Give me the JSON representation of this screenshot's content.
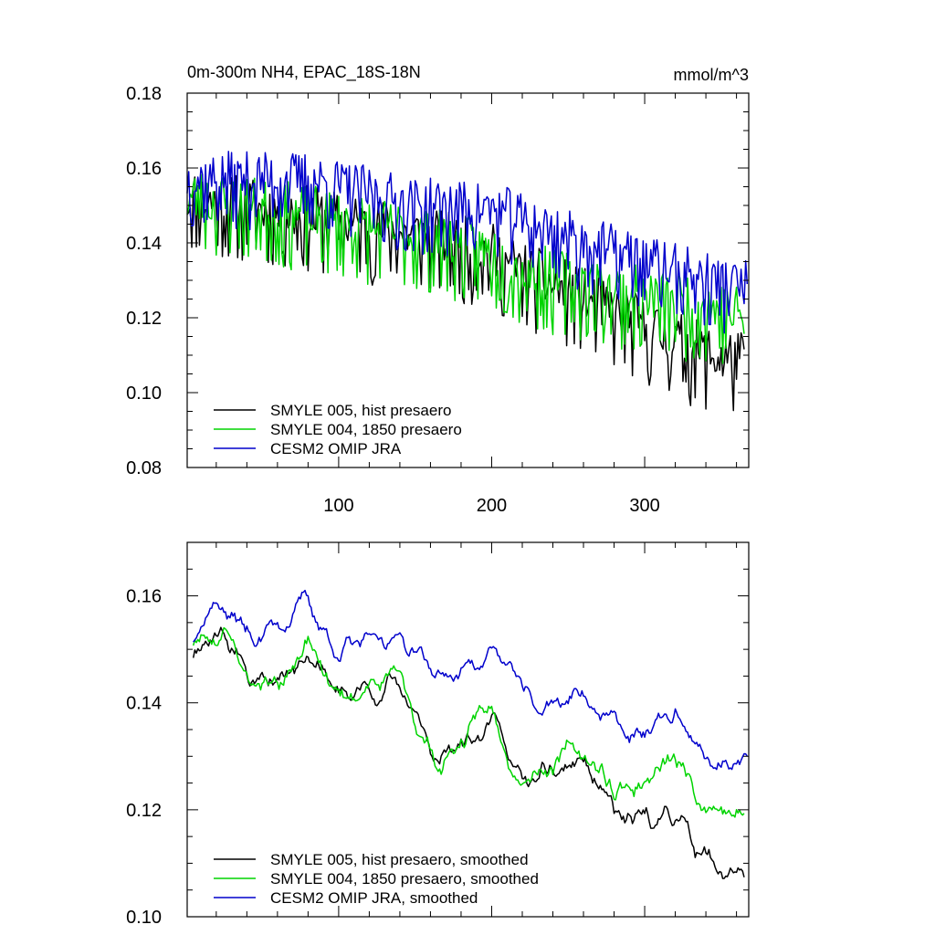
{
  "chart_data": [
    {
      "type": "line",
      "title_left": "0m-300m NH4, EPAC_18S-18N",
      "title_right": "mmol/m^3",
      "xlim": [
        1,
        368
      ],
      "ylim": [
        0.08,
        0.18
      ],
      "xticks": [
        100,
        200,
        300
      ],
      "xtick_labels": [
        "100",
        "200",
        "300"
      ],
      "yticks": [
        0.08,
        0.1,
        0.12,
        0.14,
        0.16,
        0.18
      ],
      "ytick_labels": [
        "0.08",
        "0.10",
        "0.12",
        "0.14",
        "0.16",
        "0.18"
      ],
      "series": [
        {
          "name": "SMYLE 005, hist presaero",
          "color": "#000000",
          "start": 1,
          "end": 365,
          "seed": 11,
          "noise": 0.0085,
          "trend": [
            [
              1,
              0.152
            ],
            [
              80,
              0.147
            ],
            [
              150,
              0.142
            ],
            [
              200,
              0.137
            ],
            [
              220,
              0.132
            ],
            [
              260,
              0.125
            ],
            [
              300,
              0.117
            ],
            [
              340,
              0.11
            ],
            [
              365,
              0.108
            ]
          ]
        },
        {
          "name": "SMYLE 004, 1850 presaero",
          "color": "#00d400",
          "start": 1,
          "end": 365,
          "seed": 23,
          "noise": 0.0085,
          "trend": [
            [
              1,
              0.152
            ],
            [
              80,
              0.147
            ],
            [
              150,
              0.142
            ],
            [
              200,
              0.137
            ],
            [
              220,
              0.132
            ],
            [
              260,
              0.129
            ],
            [
              300,
              0.125
            ],
            [
              340,
              0.123
            ],
            [
              365,
              0.12
            ]
          ]
        },
        {
          "name": "CESM2 OMIP JRA",
          "color": "#0000cc",
          "start": 1,
          "end": 367,
          "seed": 37,
          "noise": 0.0075,
          "trend": [
            [
              1,
              0.157
            ],
            [
              80,
              0.157
            ],
            [
              150,
              0.15
            ],
            [
              200,
              0.149
            ],
            [
              260,
              0.14
            ],
            [
              300,
              0.135
            ],
            [
              340,
              0.13
            ],
            [
              367,
              0.128
            ]
          ]
        }
      ]
    },
    {
      "type": "line",
      "xlim": [
        1,
        368
      ],
      "ylim": [
        0.1,
        0.17
      ],
      "xticks": [
        100,
        200,
        300
      ],
      "yticks": [
        0.1,
        0.12,
        0.14,
        0.16
      ],
      "ytick_labels": [
        "0.10",
        "0.12",
        "0.14",
        "0.16"
      ],
      "series": [
        {
          "name": "SMYLE 005, hist presaero, smoothed",
          "color": "#000000",
          "start": 5,
          "end": 365,
          "seed": 11,
          "noise": 0.0035,
          "trend": [
            [
              5,
              0.151
            ],
            [
              25,
              0.154
            ],
            [
              45,
              0.143
            ],
            [
              80,
              0.15
            ],
            [
              100,
              0.141
            ],
            [
              140,
              0.144
            ],
            [
              165,
              0.128
            ],
            [
              200,
              0.139
            ],
            [
              220,
              0.124
            ],
            [
              260,
              0.129
            ],
            [
              280,
              0.118
            ],
            [
              300,
              0.117
            ],
            [
              320,
              0.12
            ],
            [
              345,
              0.109
            ],
            [
              365,
              0.108
            ]
          ]
        },
        {
          "name": "SMYLE 004, 1850 presaero, smoothed",
          "color": "#00d400",
          "start": 5,
          "end": 365,
          "seed": 23,
          "noise": 0.0035,
          "trend": [
            [
              5,
              0.151
            ],
            [
              25,
              0.154
            ],
            [
              45,
              0.143
            ],
            [
              80,
              0.15
            ],
            [
              100,
              0.141
            ],
            [
              140,
              0.144
            ],
            [
              165,
              0.128
            ],
            [
              200,
              0.139
            ],
            [
              220,
              0.127
            ],
            [
              260,
              0.131
            ],
            [
              280,
              0.124
            ],
            [
              300,
              0.125
            ],
            [
              320,
              0.129
            ],
            [
              345,
              0.121
            ],
            [
              365,
              0.118
            ]
          ]
        },
        {
          "name": "CESM2 OMIP JRA, smoothed",
          "color": "#0000cc",
          "start": 5,
          "end": 367,
          "seed": 37,
          "noise": 0.003,
          "trend": [
            [
              5,
              0.155
            ],
            [
              20,
              0.159
            ],
            [
              45,
              0.152
            ],
            [
              80,
              0.159
            ],
            [
              100,
              0.149
            ],
            [
              140,
              0.153
            ],
            [
              170,
              0.144
            ],
            [
              200,
              0.15
            ],
            [
              230,
              0.139
            ],
            [
              260,
              0.142
            ],
            [
              290,
              0.133
            ],
            [
              320,
              0.138
            ],
            [
              345,
              0.128
            ],
            [
              367,
              0.128
            ]
          ]
        }
      ]
    }
  ]
}
